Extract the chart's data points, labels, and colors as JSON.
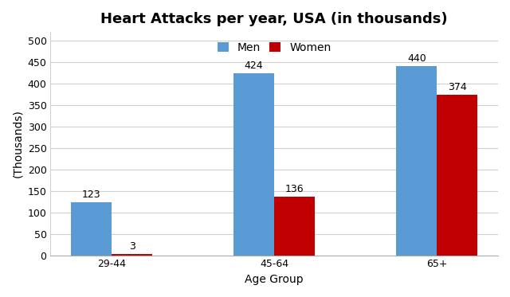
{
  "title": "Heart Attacks per year, USA (in thousands)",
  "xlabel": "Age Group",
  "ylabel": "(Thousands)",
  "categories": [
    "29-44",
    "45-64",
    "65+"
  ],
  "men_values": [
    123,
    424,
    440
  ],
  "women_values": [
    3,
    136,
    374
  ],
  "men_color": "#5B9BD5",
  "women_color": "#C00000",
  "ylim": [
    0,
    520
  ],
  "yticks": [
    0,
    50,
    100,
    150,
    200,
    250,
    300,
    350,
    400,
    450,
    500
  ],
  "legend_labels": [
    "Men",
    "Women"
  ],
  "bar_width": 0.25,
  "title_fontsize": 13,
  "label_fontsize": 10,
  "tick_fontsize": 9,
  "annotation_fontsize": 9,
  "background_color": "#ffffff",
  "plot_background_color": "#ffffff",
  "grid_color": "#d0d0d0"
}
